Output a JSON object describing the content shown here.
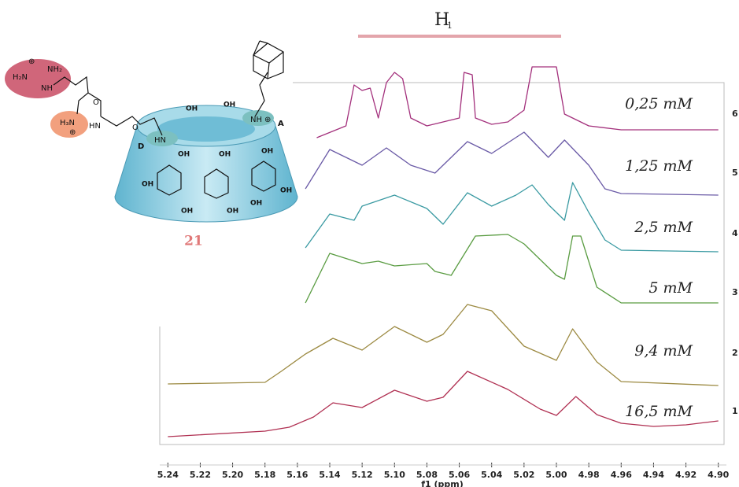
{
  "chart_data": {
    "type": "line",
    "annotation": {
      "label": "H",
      "subscript": "1"
    },
    "x_label": "f1 (ppm)",
    "xlim": [
      5.245,
      4.895
    ],
    "xticks": [
      5.24,
      5.22,
      {
        "value": 5.2,
        "label": "5.20"
      },
      5.18,
      5.16,
      5.14,
      5.12,
      {
        "value": 5.1,
        "label": "5.10"
      },
      5.08,
      5.06,
      5.04,
      5.02,
      {
        "value": 5.0,
        "label": "5.00"
      },
      4.98,
      4.96,
      4.94,
      4.92,
      {
        "value": 4.9,
        "label": "4.90"
      }
    ],
    "ylim": [
      0,
      96
    ],
    "series": [
      {
        "name": "0,25 mM",
        "trace_number": 6,
        "color": "#a3307c",
        "x": [
          5.148,
          5.13,
          5.125,
          5.12,
          5.115,
          5.11,
          5.105,
          5.1,
          5.095,
          5.09,
          5.08,
          5.06,
          5.057,
          5.052,
          5.05,
          5.04,
          5.03,
          5.02,
          5.015,
          5.0,
          4.995,
          4.98,
          4.96,
          4.9
        ],
        "values": [
          78,
          81,
          91.4,
          90,
          90.6,
          83,
          92,
          94.6,
          93,
          83,
          81,
          83,
          94.6,
          94,
          83,
          81.4,
          82,
          85,
          96,
          96,
          84,
          81,
          80,
          80
        ]
      },
      {
        "name": "1,25 mM",
        "trace_number": 5,
        "color": "#6a5aa6",
        "x": [
          5.155,
          5.14,
          5.12,
          5.105,
          5.09,
          5.075,
          5.055,
          5.04,
          5.02,
          5.005,
          4.995,
          4.98,
          4.97,
          4.96,
          4.9
        ],
        "values": [
          65,
          75,
          71,
          75.4,
          71,
          69,
          77,
          74,
          79.4,
          73,
          77.4,
          71,
          65,
          63.8,
          63.4
        ]
      },
      {
        "name": "2,5 mM",
        "trace_number": 4,
        "color": "#3a9aa2",
        "x": [
          5.155,
          5.14,
          5.125,
          5.12,
          5.1,
          5.08,
          5.07,
          5.055,
          5.04,
          5.025,
          5.015,
          5.005,
          4.995,
          4.99,
          4.98,
          4.97,
          4.96,
          4.9
        ],
        "values": [
          50,
          58.6,
          57,
          60.6,
          63.4,
          60,
          56,
          64,
          60.6,
          63.4,
          66,
          61,
          57,
          66.6,
          59,
          52,
          49.4,
          49
        ]
      },
      {
        "name": "5 mM",
        "trace_number": 3,
        "color": "#5a9c42",
        "x": [
          5.155,
          5.14,
          5.12,
          5.11,
          5.1,
          5.08,
          5.075,
          5.065,
          5.05,
          5.03,
          5.02,
          5.0,
          4.995,
          4.99,
          4.985,
          4.975,
          4.96,
          4.9
        ],
        "values": [
          36,
          48.6,
          46,
          46.6,
          45.4,
          46,
          44,
          43,
          53,
          53.4,
          51,
          43,
          42,
          53,
          53,
          40,
          36,
          36
        ]
      },
      {
        "name": "9,4 mM",
        "trace_number": 2,
        "color": "#9c8a42",
        "x": [
          5.24,
          5.18,
          5.17,
          5.155,
          5.138,
          5.12,
          5.1,
          5.08,
          5.07,
          5.055,
          5.04,
          5.02,
          5.0,
          4.99,
          4.975,
          4.96,
          4.9
        ],
        "values": [
          15.4,
          15.8,
          18.6,
          23,
          27,
          24,
          30,
          26,
          28,
          35.6,
          34,
          25,
          21.4,
          29.4,
          21,
          16,
          15
        ]
      },
      {
        "name": "16,5 mM",
        "trace_number": 1,
        "color": "#b03052",
        "x": [
          5.24,
          5.18,
          5.165,
          5.15,
          5.138,
          5.12,
          5.1,
          5.08,
          5.07,
          5.055,
          5.03,
          5.01,
          5.0,
          4.988,
          4.975,
          4.96,
          4.94,
          4.92,
          4.9
        ],
        "values": [
          2,
          3.4,
          4.4,
          7,
          10.6,
          9.4,
          13.8,
          11,
          12,
          18.6,
          14,
          9,
          7.4,
          12.2,
          7.6,
          5.4,
          4.6,
          5,
          6
        ]
      }
    ]
  },
  "structure": {
    "number": "21",
    "site_a": "A",
    "site_d": "D",
    "guanidinium": [
      "H₂N",
      "NH₂",
      "NH"
    ],
    "amine": "H₃N",
    "amide": [
      "O",
      "HN"
    ],
    "linker_o": "O",
    "nh_a": "NH",
    "nh_d": "HN",
    "charge": "⊕",
    "hydroxyls": [
      "OH",
      "OH",
      "OH",
      "OH",
      "OH",
      "OH",
      "OH",
      "OH",
      "OH",
      "OH"
    ]
  }
}
